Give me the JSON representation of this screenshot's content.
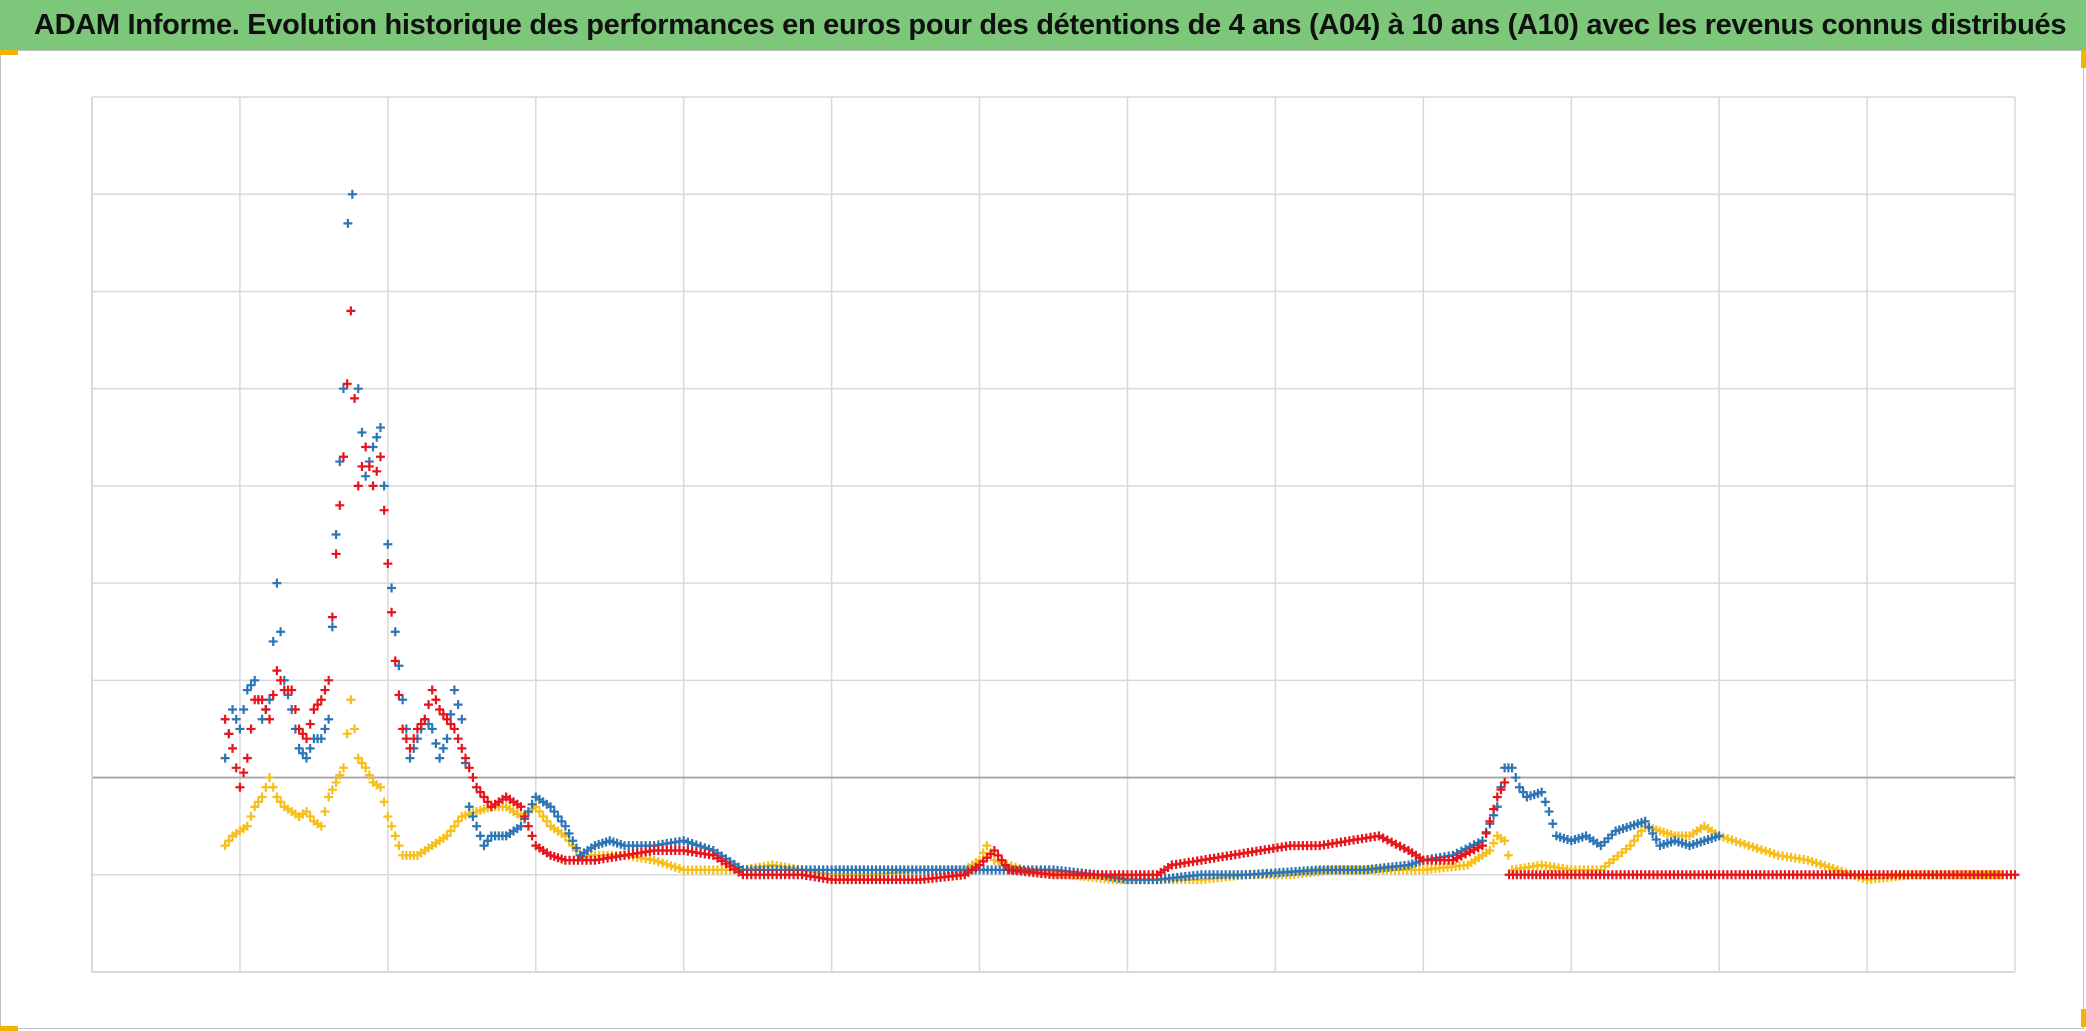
{
  "title": "ADAM Informe. Evolution historique des performances en euros pour des détentions de 4 ans (A04) à 10 ans (A10) avec les revenus connus distribués",
  "colors": {
    "title_bg": "#7cc77a",
    "grid": "#d9d9d9",
    "zero_line": "#a6a6a6",
    "corner_accent": "#f2b400"
  },
  "chart_data": {
    "type": "scatter",
    "marker": "+",
    "xlim": [
      0,
      13
    ],
    "ylim": [
      -2,
      7
    ],
    "grid": true,
    "x_gridlines": 13,
    "y_gridlines": 9,
    "zero_line_at": 0,
    "tick_labels_visible": false,
    "legend": "none",
    "series": [
      {
        "color": "#2e75b6",
        "points": [
          [
            0.9,
            0.2
          ],
          [
            0.95,
            0.7
          ],
          [
            1.0,
            0.5
          ],
          [
            1.05,
            0.9
          ],
          [
            1.1,
            1.0
          ],
          [
            1.15,
            0.6
          ],
          [
            1.2,
            0.8
          ],
          [
            1.25,
            2.0
          ],
          [
            1.3,
            1.0
          ],
          [
            1.35,
            0.7
          ],
          [
            1.4,
            0.3
          ],
          [
            1.45,
            0.2
          ],
          [
            1.5,
            0.4
          ],
          [
            1.55,
            0.4
          ],
          [
            1.6,
            0.6
          ],
          [
            1.65,
            2.5
          ],
          [
            1.7,
            4.0
          ],
          [
            1.73,
            5.7
          ],
          [
            1.76,
            6.0
          ],
          [
            1.8,
            4.0
          ],
          [
            1.85,
            3.1
          ],
          [
            1.9,
            3.4
          ],
          [
            1.95,
            3.6
          ],
          [
            2.0,
            2.4
          ],
          [
            2.05,
            1.5
          ],
          [
            2.1,
            0.8
          ],
          [
            2.15,
            0.2
          ],
          [
            2.2,
            0.4
          ],
          [
            2.25,
            0.6
          ],
          [
            2.3,
            0.5
          ],
          [
            2.35,
            0.2
          ],
          [
            2.4,
            0.4
          ],
          [
            2.45,
            0.9
          ],
          [
            2.5,
            0.6
          ],
          [
            2.55,
            -0.3
          ],
          [
            2.6,
            -0.5
          ],
          [
            2.65,
            -0.7
          ],
          [
            2.7,
            -0.6
          ],
          [
            2.8,
            -0.6
          ],
          [
            2.9,
            -0.5
          ],
          [
            3.0,
            -0.2
          ],
          [
            3.1,
            -0.3
          ],
          [
            3.2,
            -0.5
          ],
          [
            3.3,
            -0.8
          ],
          [
            3.4,
            -0.7
          ],
          [
            3.5,
            -0.65
          ],
          [
            3.6,
            -0.7
          ],
          [
            3.8,
            -0.7
          ],
          [
            4.0,
            -0.65
          ],
          [
            4.2,
            -0.75
          ],
          [
            4.4,
            -0.95
          ],
          [
            4.6,
            -0.95
          ],
          [
            4.8,
            -0.95
          ],
          [
            5.0,
            -0.95
          ],
          [
            5.3,
            -0.95
          ],
          [
            5.6,
            -0.95
          ],
          [
            6.0,
            -0.95
          ],
          [
            6.3,
            -0.95
          ],
          [
            6.5,
            -0.95
          ],
          [
            6.8,
            -1.0
          ],
          [
            7.0,
            -1.05
          ],
          [
            7.2,
            -1.05
          ],
          [
            7.5,
            -1.0
          ],
          [
            7.8,
            -1.0
          ],
          [
            8.0,
            -0.98
          ],
          [
            8.3,
            -0.95
          ],
          [
            8.6,
            -0.95
          ],
          [
            8.9,
            -0.9
          ],
          [
            9.0,
            -0.85
          ],
          [
            9.2,
            -0.8
          ],
          [
            9.4,
            -0.65
          ],
          [
            9.5,
            -0.3
          ],
          [
            9.55,
            0.1
          ],
          [
            9.6,
            0.1
          ],
          [
            9.65,
            -0.1
          ],
          [
            9.7,
            -0.2
          ],
          [
            9.8,
            -0.15
          ],
          [
            9.85,
            -0.35
          ],
          [
            9.9,
            -0.6
          ],
          [
            10.0,
            -0.65
          ],
          [
            10.1,
            -0.6
          ],
          [
            10.2,
            -0.7
          ],
          [
            10.3,
            -0.55
          ],
          [
            10.4,
            -0.5
          ],
          [
            10.5,
            -0.45
          ],
          [
            10.6,
            -0.7
          ],
          [
            10.7,
            -0.65
          ],
          [
            10.8,
            -0.7
          ],
          [
            10.9,
            -0.65
          ],
          [
            11.0,
            -0.6
          ]
        ]
      },
      {
        "color": "#e8141b",
        "points": [
          [
            0.9,
            0.6
          ],
          [
            0.95,
            0.3
          ],
          [
            1.0,
            -0.1
          ],
          [
            1.05,
            0.2
          ],
          [
            1.1,
            0.8
          ],
          [
            1.15,
            0.8
          ],
          [
            1.2,
            0.6
          ],
          [
            1.25,
            1.1
          ],
          [
            1.3,
            0.9
          ],
          [
            1.35,
            0.9
          ],
          [
            1.4,
            0.5
          ],
          [
            1.45,
            0.4
          ],
          [
            1.5,
            0.7
          ],
          [
            1.55,
            0.8
          ],
          [
            1.6,
            1.0
          ],
          [
            1.65,
            2.3
          ],
          [
            1.7,
            3.3
          ],
          [
            1.75,
            4.8
          ],
          [
            1.8,
            3.0
          ],
          [
            1.85,
            3.4
          ],
          [
            1.9,
            3.0
          ],
          [
            1.95,
            3.3
          ],
          [
            2.0,
            2.2
          ],
          [
            2.05,
            1.2
          ],
          [
            2.1,
            0.5
          ],
          [
            2.15,
            0.3
          ],
          [
            2.2,
            0.5
          ],
          [
            2.25,
            0.6
          ],
          [
            2.3,
            0.9
          ],
          [
            2.35,
            0.7
          ],
          [
            2.4,
            0.6
          ],
          [
            2.45,
            0.5
          ],
          [
            2.5,
            0.3
          ],
          [
            2.55,
            0.1
          ],
          [
            2.6,
            -0.1
          ],
          [
            2.65,
            -0.2
          ],
          [
            2.7,
            -0.3
          ],
          [
            2.8,
            -0.2
          ],
          [
            2.9,
            -0.3
          ],
          [
            3.0,
            -0.7
          ],
          [
            3.1,
            -0.8
          ],
          [
            3.2,
            -0.85
          ],
          [
            3.4,
            -0.85
          ],
          [
            3.6,
            -0.8
          ],
          [
            3.8,
            -0.75
          ],
          [
            4.0,
            -0.75
          ],
          [
            4.2,
            -0.8
          ],
          [
            4.4,
            -1.0
          ],
          [
            4.6,
            -1.0
          ],
          [
            4.8,
            -1.0
          ],
          [
            5.0,
            -1.05
          ],
          [
            5.3,
            -1.05
          ],
          [
            5.6,
            -1.05
          ],
          [
            5.9,
            -1.0
          ],
          [
            6.0,
            -0.9
          ],
          [
            6.1,
            -0.75
          ],
          [
            6.2,
            -0.95
          ],
          [
            6.5,
            -1.0
          ],
          [
            6.8,
            -1.0
          ],
          [
            7.0,
            -1.0
          ],
          [
            7.2,
            -1.0
          ],
          [
            7.3,
            -0.9
          ],
          [
            7.5,
            -0.85
          ],
          [
            7.7,
            -0.8
          ],
          [
            7.9,
            -0.75
          ],
          [
            8.1,
            -0.7
          ],
          [
            8.3,
            -0.7
          ],
          [
            8.5,
            -0.65
          ],
          [
            8.7,
            -0.6
          ],
          [
            8.9,
            -0.75
          ],
          [
            9.0,
            -0.85
          ],
          [
            9.2,
            -0.85
          ],
          [
            9.4,
            -0.7
          ],
          [
            9.5,
            -0.2
          ],
          [
            9.55,
            -0.05
          ],
          [
            9.58,
            -1.0
          ],
          [
            10.0,
            -1.0
          ],
          [
            10.5,
            -1.0
          ],
          [
            11.0,
            -1.0
          ],
          [
            11.5,
            -1.0
          ],
          [
            12.0,
            -1.0
          ],
          [
            12.5,
            -1.0
          ],
          [
            13.0,
            -1.0
          ]
        ]
      },
      {
        "color": "#f6bf1a",
        "points": [
          [
            0.9,
            -0.7
          ],
          [
            0.95,
            -0.6
          ],
          [
            1.0,
            -0.55
          ],
          [
            1.05,
            -0.5
          ],
          [
            1.1,
            -0.3
          ],
          [
            1.15,
            -0.2
          ],
          [
            1.2,
            0.0
          ],
          [
            1.25,
            -0.2
          ],
          [
            1.3,
            -0.3
          ],
          [
            1.35,
            -0.35
          ],
          [
            1.4,
            -0.4
          ],
          [
            1.45,
            -0.35
          ],
          [
            1.5,
            -0.45
          ],
          [
            1.55,
            -0.5
          ],
          [
            1.6,
            -0.2
          ],
          [
            1.65,
            -0.05
          ],
          [
            1.7,
            0.1
          ],
          [
            1.75,
            0.8
          ],
          [
            1.8,
            0.2
          ],
          [
            1.85,
            0.1
          ],
          [
            1.9,
            -0.05
          ],
          [
            1.95,
            -0.1
          ],
          [
            2.0,
            -0.4
          ],
          [
            2.05,
            -0.6
          ],
          [
            2.1,
            -0.8
          ],
          [
            2.2,
            -0.8
          ],
          [
            2.3,
            -0.7
          ],
          [
            2.4,
            -0.6
          ],
          [
            2.5,
            -0.4
          ],
          [
            2.6,
            -0.35
          ],
          [
            2.7,
            -0.3
          ],
          [
            2.8,
            -0.3
          ],
          [
            2.9,
            -0.4
          ],
          [
            3.0,
            -0.3
          ],
          [
            3.1,
            -0.5
          ],
          [
            3.2,
            -0.6
          ],
          [
            3.3,
            -0.8
          ],
          [
            3.4,
            -0.8
          ],
          [
            3.6,
            -0.8
          ],
          [
            3.8,
            -0.85
          ],
          [
            4.0,
            -0.95
          ],
          [
            4.2,
            -0.95
          ],
          [
            4.4,
            -0.95
          ],
          [
            4.6,
            -0.9
          ],
          [
            4.8,
            -0.95
          ],
          [
            5.0,
            -1.0
          ],
          [
            5.3,
            -1.0
          ],
          [
            5.6,
            -0.95
          ],
          [
            5.9,
            -0.95
          ],
          [
            6.0,
            -0.85
          ],
          [
            6.05,
            -0.7
          ],
          [
            6.1,
            -0.85
          ],
          [
            6.3,
            -0.95
          ],
          [
            6.6,
            -1.0
          ],
          [
            6.9,
            -1.05
          ],
          [
            7.2,
            -1.05
          ],
          [
            7.5,
            -1.05
          ],
          [
            7.8,
            -1.0
          ],
          [
            8.1,
            -1.0
          ],
          [
            8.4,
            -0.95
          ],
          [
            8.7,
            -0.95
          ],
          [
            9.0,
            -0.95
          ],
          [
            9.3,
            -0.9
          ],
          [
            9.45,
            -0.75
          ],
          [
            9.5,
            -0.6
          ],
          [
            9.55,
            -0.65
          ],
          [
            9.6,
            -0.95
          ],
          [
            9.8,
            -0.9
          ],
          [
            10.0,
            -0.95
          ],
          [
            10.2,
            -0.95
          ],
          [
            10.4,
            -0.7
          ],
          [
            10.5,
            -0.5
          ],
          [
            10.6,
            -0.55
          ],
          [
            10.7,
            -0.6
          ],
          [
            10.8,
            -0.6
          ],
          [
            10.9,
            -0.5
          ],
          [
            11.0,
            -0.6
          ],
          [
            11.2,
            -0.7
          ],
          [
            11.4,
            -0.8
          ],
          [
            11.6,
            -0.85
          ],
          [
            11.8,
            -0.95
          ],
          [
            12.0,
            -1.05
          ],
          [
            12.3,
            -1.0
          ],
          [
            12.6,
            -1.0
          ],
          [
            12.9,
            -1.0
          ]
        ]
      }
    ]
  }
}
